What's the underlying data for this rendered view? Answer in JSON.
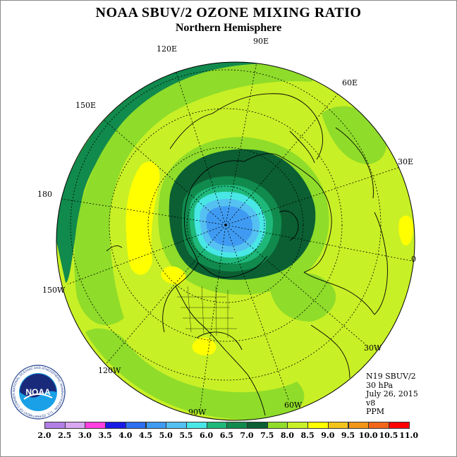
{
  "header": {
    "title": "NOAA SBUV/2 OZONE MIXING RATIO",
    "subtitle": "Northern Hemisphere"
  },
  "longitude_labels": [
    "90E",
    "60E",
    "30E",
    "0",
    "30W",
    "60W",
    "90W",
    "120W",
    "150W",
    "180",
    "150E",
    "120E"
  ],
  "info": {
    "satellite": "N19 SBUV/2",
    "level": "30 hPa",
    "date": "July 26, 2015",
    "version": "v8",
    "units": "PPM"
  },
  "logo": {
    "text": "NOAA",
    "ring_text": "NATIONAL OCEANIC AND ATMOSPHERIC ADMINISTRATION · U.S. DEPARTMENT OF COMMERCE",
    "icon": "noaa-logo-icon"
  },
  "colorbar": {
    "labels": [
      "2.0",
      "2.5",
      "3.0",
      "3.5",
      "4.0",
      "4.5",
      "5.0",
      "5.5",
      "6.0",
      "6.5",
      "7.0",
      "7.5",
      "8.0",
      "8.5",
      "9.0",
      "9.5",
      "10.0",
      "10.5",
      "11.0"
    ],
    "colors": [
      "#b27fe6",
      "#d9a6f2",
      "#ff3fe0",
      "#1a1ae6",
      "#2e6ef0",
      "#3f9bf2",
      "#55c0f2",
      "#49e6e6",
      "#1eb87a",
      "#118a4d",
      "#0b5f33",
      "#8fdc2a",
      "#c7f026",
      "#ffff00",
      "#f2c31a",
      "#f2961a",
      "#f2661a",
      "#ff0000",
      "#8a5a3a"
    ]
  }
}
